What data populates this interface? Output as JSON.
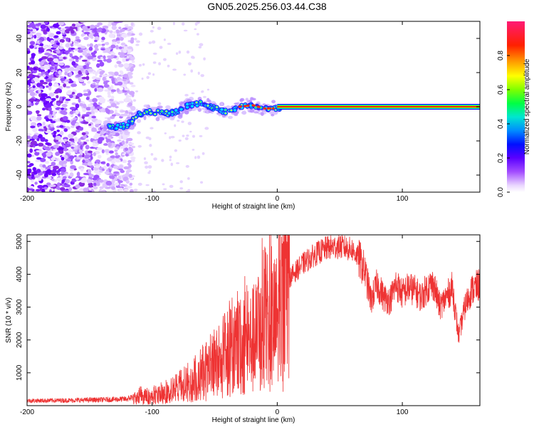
{
  "title": "GN05.2025.256.03.44.C38",
  "chart_data": [
    {
      "type": "heatmap",
      "name": "spectrogram",
      "xlabel": "Height of straight line (km)",
      "ylabel": "Frequency (Hz)",
      "xlim": [
        -200,
        162
      ],
      "ylim": [
        -50,
        50
      ],
      "xticks": [
        -200,
        -100,
        0,
        100
      ],
      "yticks": [
        -40,
        -20,
        0,
        20,
        40
      ],
      "tick_labels_x": [
        "-200",
        "-100",
        "0",
        "100"
      ],
      "tick_labels_y": [
        "-40",
        "-20",
        "0",
        "20",
        "40"
      ],
      "colorbar": {
        "label": "Normalized spectral amplitude",
        "range": [
          0,
          1
        ],
        "ticks": [
          0.0,
          0.2,
          0.4,
          0.6,
          0.8
        ],
        "tick_labels": [
          "0.0",
          "0.2",
          "0.4",
          "0.6",
          "0.8"
        ],
        "colors": [
          "#ffffff",
          "#e6ccff",
          "#8a2be2",
          "#5a00ff",
          "#0000ff",
          "#00ccff",
          "#00ff66",
          "#66ff00",
          "#ffff00",
          "#ff8c00",
          "#ff0000",
          "#ff1a75"
        ]
      },
      "carrier_track": {
        "x": [
          -130,
          -120,
          -110,
          -100,
          -90,
          -80,
          -70,
          -60,
          -50,
          -40,
          -30,
          -20,
          -10,
          0,
          10,
          162
        ],
        "y": [
          -12,
          -11,
          -4,
          -3,
          -4,
          -3,
          1,
          2,
          -1,
          -3,
          0,
          1,
          -1,
          -1,
          0,
          0
        ]
      },
      "noise_region_x": [
        -200,
        -115
      ]
    },
    {
      "type": "line",
      "name": "snr",
      "xlabel": "Height of straight line (km)",
      "ylabel": "SNR (10 * v/v)",
      "xlim": [
        -200,
        162
      ],
      "ylim": [
        0,
        5200
      ],
      "xticks": [
        -200,
        -100,
        0,
        100
      ],
      "yticks": [
        1000,
        2000,
        3000,
        4000,
        5000
      ],
      "tick_labels_x": [
        "-200",
        "-100",
        "0",
        "100"
      ],
      "tick_labels_y": [
        "1000",
        "2000",
        "3000",
        "4000",
        "5000"
      ],
      "color": "#ee3333",
      "envelope": {
        "x": [
          -200,
          -170,
          -140,
          -120,
          -110,
          -100,
          -90,
          -80,
          -70,
          -60,
          -50,
          -40,
          -30,
          -20,
          -10,
          0,
          10,
          20,
          30,
          40,
          50,
          60,
          65,
          70,
          75,
          80,
          85,
          90,
          95,
          100,
          105,
          110,
          115,
          120,
          125,
          130,
          135,
          140,
          145,
          150,
          155,
          162
        ],
        "y": [
          150,
          160,
          180,
          200,
          350,
          350,
          450,
          600,
          800,
          1100,
          1400,
          1800,
          2300,
          2700,
          3100,
          3500,
          3900,
          4300,
          4600,
          4800,
          4850,
          4750,
          4500,
          4100,
          3200,
          3700,
          3300,
          3200,
          3700,
          3400,
          3600,
          3500,
          3300,
          3600,
          3700,
          3000,
          3300,
          3600,
          2100,
          3000,
          3500,
          3700
        ]
      }
    }
  ]
}
